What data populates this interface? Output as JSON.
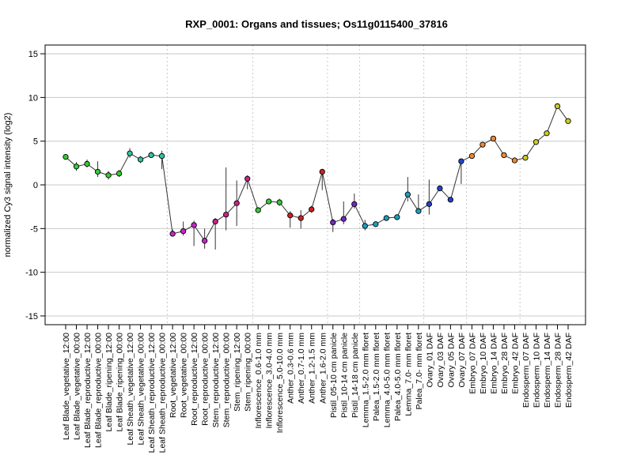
{
  "chart_data": {
    "type": "line",
    "title": "RXP_0001: Organs and tissues; Os11g0115400_37816",
    "ylabel": "normalized Cy3 signal intensity (log2)",
    "xlabel": "",
    "ylim": [
      -16,
      16
    ],
    "yticks": [
      -15,
      -10,
      -5,
      0,
      5,
      10,
      15
    ],
    "grid": true,
    "categories": [
      "Leaf Blade_vegetative_12:00",
      "Leaf Blade_vegetative_00:00",
      "Leaf Blade_reproductive_12:00",
      "Leaf Blade_reproductive_00:00",
      "Leaf Blade_ripening_12:00",
      "Leaf Blade_ripening_00:00",
      "Leaf Sheath_vegetative_12:00",
      "Leaf Sheath_vegetative_00:00",
      "Leaf Sheath_reproductive_12:00",
      "Leaf Sheath_reproductive_00:00",
      "Root_vegetative_12:00",
      "Root_vegetative_00:00",
      "Root_reproductive_12:00",
      "Root_reproductive_00:00",
      "Stem_reproductive_12:00",
      "Stem_reproductive_00:00",
      "Stem_ripening_12:00",
      "Stem_ripening_00:00",
      "Inflorescence_0.6-1.0 mm",
      "Inflorescence_3.0-4.0 mm",
      "Inflorescence_5.0-10.0 mm",
      "Anther_0.3-0.6 mm",
      "Anther_0.7-1.0 mm",
      "Anther_1.2-1.5 mm",
      "Anther_1.6-2.0 mm",
      "Pistil_05-10 cm panicle",
      "Pistil_10-14 cm panicle",
      "Pistil_14-18 cm panicle",
      "Lemma_1.5-2.0 mm floret",
      "Palea_1.5-2.0 mm floret",
      "Lemma_4.0-5.0 mm floret",
      "Palea_4.0-5.0 mm floret",
      "Lemma_7.0- mm floret",
      "Palea_7.0- mm floret",
      "Ovary_01 DAF",
      "Ovary_03 DAF",
      "Ovary_05 DAF",
      "Ovary_07 DAF",
      "Embryo_07 DAF",
      "Embryo_10 DAF",
      "Embryo_14 DAF",
      "Embryo_28 DAF",
      "Embryo_42 DAF",
      "Endosperm_07 DAF",
      "Endosperm_10 DAF",
      "Endosperm_14 DAF",
      "Endosperm_28 DAF",
      "Endosperm_42 DAF"
    ],
    "values": [
      3.2,
      2.1,
      2.4,
      1.5,
      1.1,
      1.3,
      3.6,
      2.9,
      3.4,
      3.3,
      -5.6,
      -5.3,
      -4.6,
      -6.4,
      -4.2,
      -3.4,
      -2.1,
      0.7,
      -2.9,
      -1.9,
      -2.0,
      -3.5,
      -3.8,
      -2.8,
      1.5,
      -4.3,
      -3.9,
      -2.2,
      -4.7,
      -4.5,
      -3.8,
      -3.7,
      -1.1,
      -3.0,
      -2.2,
      -0.4,
      -1.7,
      2.7,
      3.3,
      4.6,
      5.3,
      3.4,
      2.8,
      3.1,
      4.9,
      5.9,
      9.0,
      7.3
    ],
    "error_low": [
      3.0,
      1.6,
      2.0,
      0.9,
      0.6,
      0.9,
      3.1,
      2.5,
      3.1,
      1.8,
      -5.9,
      -5.8,
      -7.0,
      -7.3,
      -7.4,
      -5.2,
      -4.7,
      -0.5,
      -3.0,
      -2.0,
      -2.4,
      -4.9,
      -5.0,
      -3.2,
      -0.6,
      -5.4,
      -4.5,
      -2.7,
      -5.2,
      -4.8,
      -4.0,
      -3.9,
      -1.9,
      -3.3,
      -3.4,
      -0.6,
      -2.0,
      0.1,
      3.2,
      4.5,
      5.1,
      3.2,
      2.6,
      2.9,
      4.7,
      5.7,
      8.9,
      7.1
    ],
    "error_high": [
      3.4,
      2.6,
      2.9,
      2.7,
      1.6,
      1.7,
      4.2,
      3.3,
      3.8,
      3.9,
      -5.1,
      -4.2,
      -4.1,
      -5.0,
      -3.8,
      2.0,
      0.5,
      1.1,
      -2.7,
      -1.8,
      -1.6,
      -3.0,
      -2.9,
      -2.4,
      1.8,
      -3.9,
      -1.9,
      -1.0,
      -4.0,
      -4.3,
      -3.6,
      -3.5,
      0.9,
      -1.1,
      0.6,
      -0.1,
      -1.4,
      2.8,
      3.4,
      4.7,
      5.5,
      3.6,
      3.0,
      3.3,
      5.1,
      6.1,
      9.1,
      7.5
    ],
    "point_colors": [
      "#33cc33",
      "#33cc33",
      "#33cc33",
      "#33cc33",
      "#33cc33",
      "#33cc33",
      "#2ec4a0",
      "#2ec4a0",
      "#2ec4a0",
      "#2ec4a0",
      "#cc22cc",
      "#cc22cc",
      "#cc22cc",
      "#cc22cc",
      "#cc2288",
      "#cc2288",
      "#cc2288",
      "#cc2288",
      "#33cc33",
      "#33cc33",
      "#33cc33",
      "#cc2222",
      "#cc2222",
      "#cc2222",
      "#cc2222",
      "#7a22cc",
      "#7a22cc",
      "#7a22cc",
      "#1aa0c0",
      "#1aa0c0",
      "#1aa0c0",
      "#1aa0c0",
      "#1aa0c0",
      "#1aa0c0",
      "#2244cc",
      "#2244cc",
      "#2244cc",
      "#2244cc",
      "#ee8833",
      "#ee8833",
      "#ee8833",
      "#ee8833",
      "#ee8833",
      "#cccc22",
      "#cccc22",
      "#cccc22",
      "#cccc22",
      "#cccc22"
    ],
    "vertical_separators_after_index": [
      9,
      17,
      24,
      27,
      33,
      37,
      42
    ]
  }
}
